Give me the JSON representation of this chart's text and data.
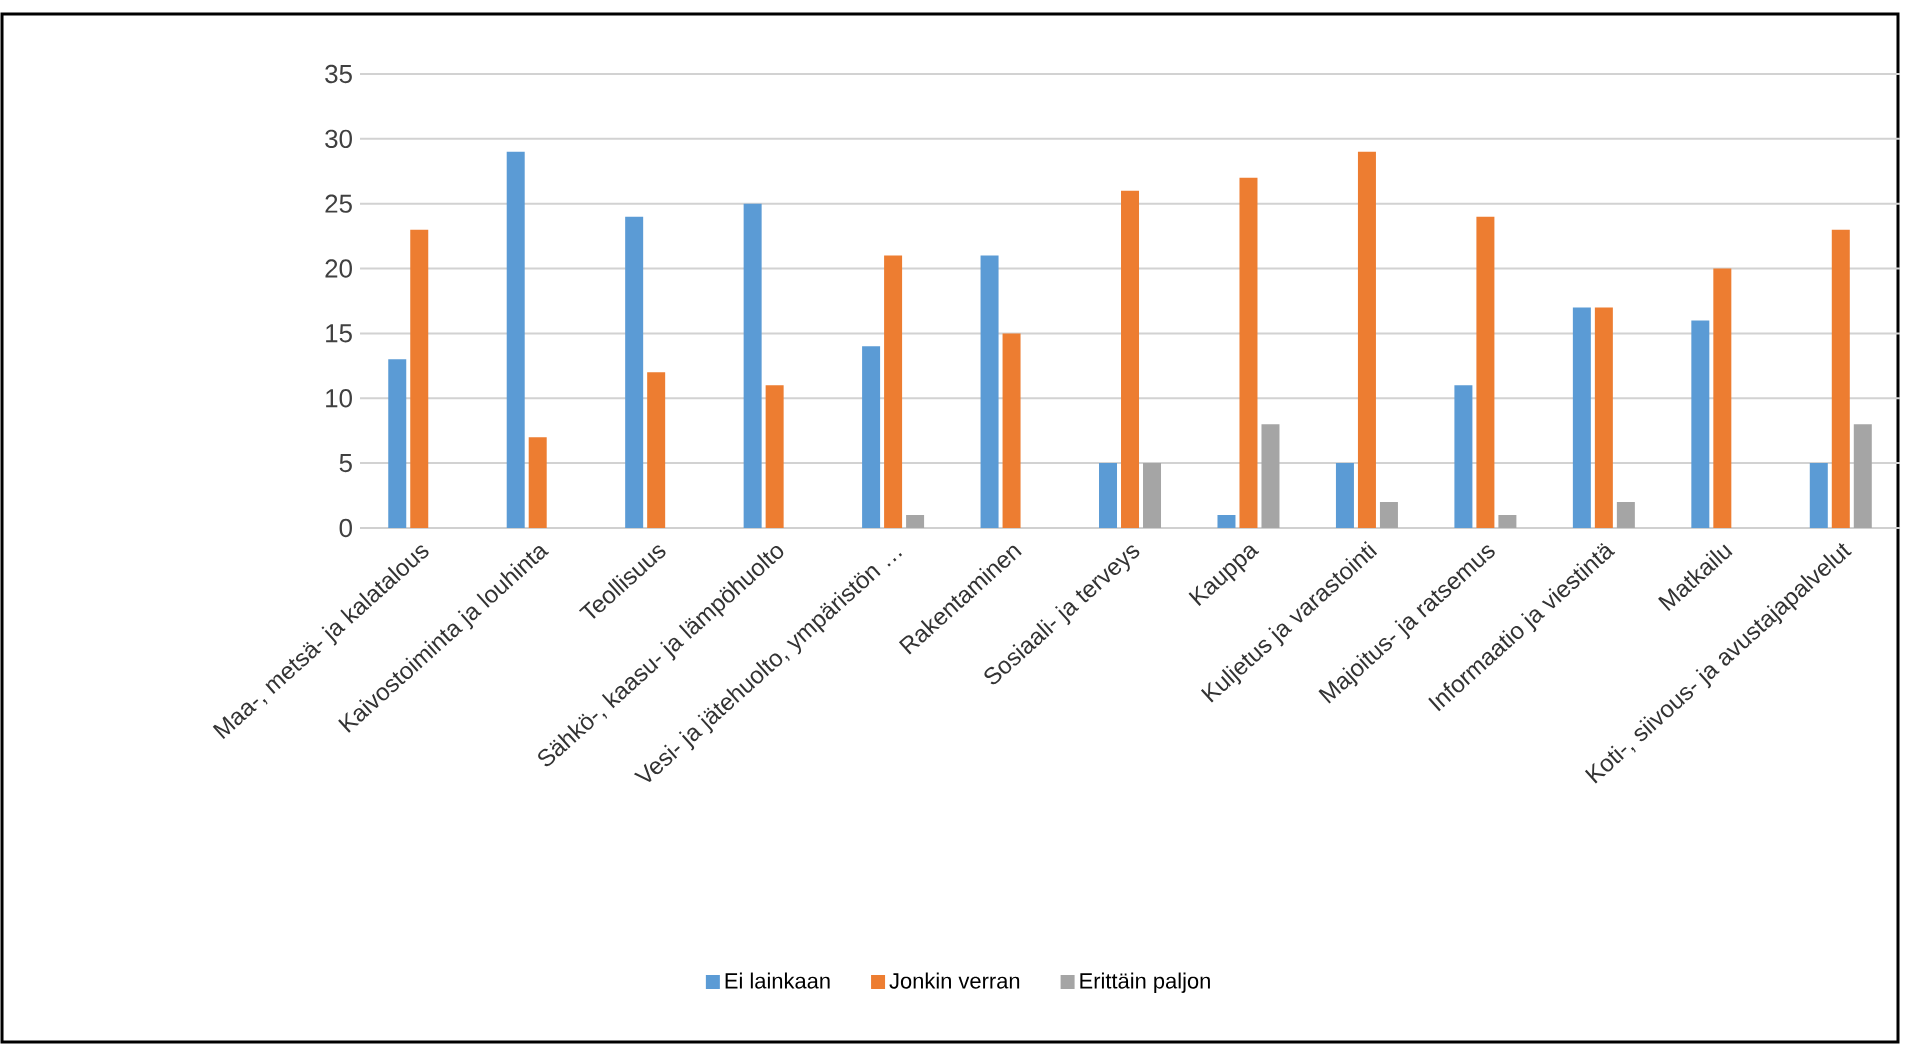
{
  "chart_data": {
    "type": "bar",
    "categories": [
      "Maa-, metsä- ja kalatalous",
      "Kaivostoiminta ja louhinta",
      "Teollisuus",
      "Sähkö-, kaasu- ja lämpöhuolto",
      "Vesi- ja jätehuolto, ympäristön …",
      "Rakentaminen",
      "Sosiaali- ja terveys",
      "Kauppa",
      "Kuljetus ja varastointi",
      "Majoitus- ja ratsemus",
      "Informaatio ja viestintä",
      "Matkailu",
      "Koti-, siivous- ja avustajapalvelut"
    ],
    "series": [
      {
        "name": "Ei lainkaan",
        "color": "#5b9bd5",
        "values": [
          13,
          29,
          24,
          25,
          14,
          21,
          5,
          1,
          5,
          11,
          17,
          16,
          5
        ]
      },
      {
        "name": "Jonkin verran",
        "color": "#ed7d31",
        "values": [
          23,
          7,
          12,
          11,
          21,
          15,
          26,
          27,
          29,
          24,
          17,
          20,
          23
        ]
      },
      {
        "name": "Erittäin paljon",
        "color": "#a5a5a5",
        "values": [
          0,
          0,
          0,
          0,
          1,
          0,
          5,
          8,
          2,
          1,
          2,
          0,
          8
        ]
      }
    ],
    "ylim": [
      0,
      35
    ],
    "yticks": [
      0,
      5,
      10,
      15,
      20,
      25,
      30,
      35
    ],
    "grid": "y",
    "legend": "bottom"
  }
}
